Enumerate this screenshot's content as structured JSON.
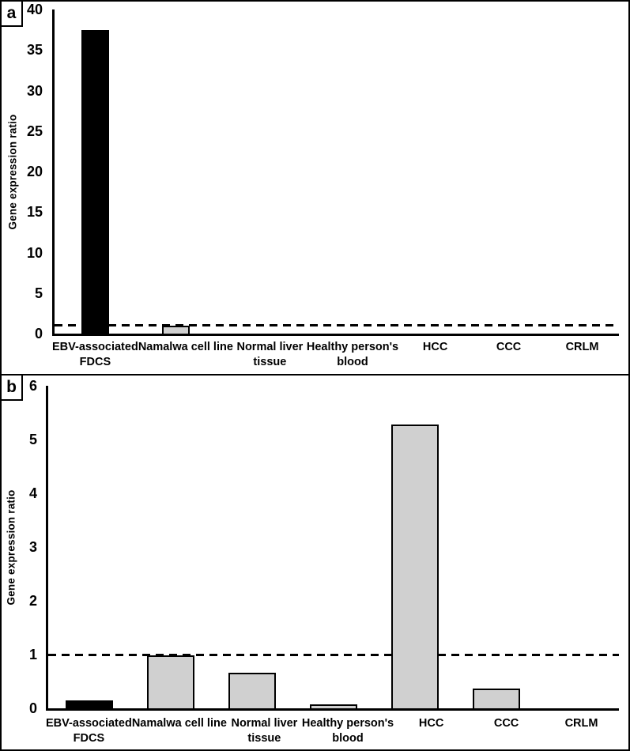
{
  "figure": {
    "description_colors": {
      "highlight_bar": "#000000",
      "default_bar": "#d0d0d0",
      "axis_and_text": "#000000",
      "background": "#ffffff"
    }
  },
  "chart_data": [
    {
      "type": "bar",
      "panel_label": "a",
      "title": "",
      "xlabel": "",
      "ylabel": "Gene expression ratio",
      "ylim": [
        0,
        40
      ],
      "yticks": [
        0,
        5,
        10,
        15,
        20,
        25,
        30,
        35,
        40
      ],
      "reference_line_y": 1,
      "reference_line_style": "dashed",
      "grid": false,
      "legend": false,
      "categories": [
        "EBV-associated FDCS",
        "Namalwa cell line",
        "Normal liver tissue",
        "Healthy person's blood",
        "HCC",
        "CCC",
        "CRLM"
      ],
      "category_label_lines": [
        [
          "EBV-associated",
          "FDCS"
        ],
        [
          "Namalwa cell line"
        ],
        [
          "Normal liver",
          "tissue"
        ],
        [
          "Healthy person's",
          "blood"
        ],
        [
          "HCC"
        ],
        [
          "CCC"
        ],
        [
          "CRLM"
        ]
      ],
      "values": [
        37.5,
        0.97,
        0,
        0,
        0,
        0,
        0
      ],
      "bar_colors": [
        "#000000",
        "#d0d0d0",
        "#d0d0d0",
        "#d0d0d0",
        "#d0d0d0",
        "#d0d0d0",
        "#d0d0d0"
      ]
    },
    {
      "type": "bar",
      "panel_label": "b",
      "title": "",
      "xlabel": "",
      "ylabel": "Gene expression ratio",
      "ylim": [
        0,
        6
      ],
      "yticks": [
        0,
        1,
        2,
        3,
        4,
        5,
        6
      ],
      "reference_line_y": 1,
      "reference_line_style": "dashed",
      "grid": false,
      "legend": false,
      "categories": [
        "EBV-associated FDCS",
        "Namalwa cell line",
        "Normal liver tissue",
        "Healthy person's blood",
        "HCC",
        "CCC",
        "CRLM"
      ],
      "category_label_lines": [
        [
          "EBV-associated",
          "FDCS"
        ],
        [
          "Namalwa cell line"
        ],
        [
          "Normal liver",
          "tissue"
        ],
        [
          "Healthy person's",
          "blood"
        ],
        [
          "HCC"
        ],
        [
          "CCC"
        ],
        [
          "CRLM"
        ]
      ],
      "values": [
        0.14,
        0.98,
        0.66,
        0.08,
        5.28,
        0.37,
        0
      ],
      "bar_colors": [
        "#000000",
        "#d0d0d0",
        "#d0d0d0",
        "#d0d0d0",
        "#d0d0d0",
        "#d0d0d0",
        "#d0d0d0"
      ]
    }
  ]
}
